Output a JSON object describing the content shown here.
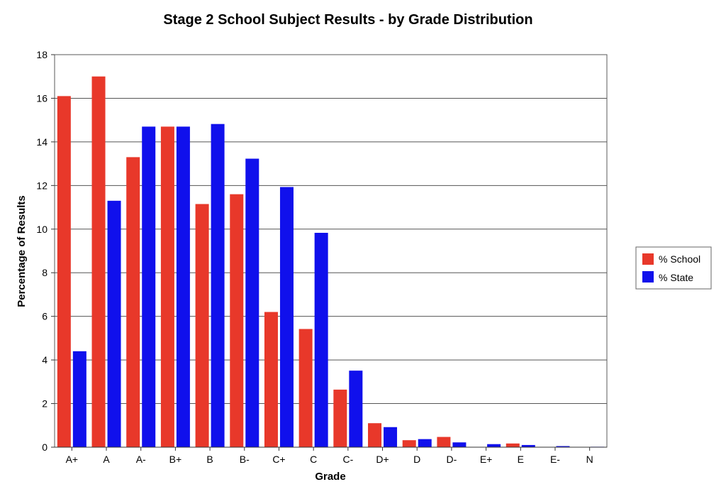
{
  "chart_data": {
    "type": "bar",
    "title": "Stage 2 School Subject Results - by Grade Distribution",
    "xlabel": "Grade",
    "ylabel": "Percentage of Results",
    "ylim": [
      0,
      18
    ],
    "yticks": [
      0,
      2,
      4,
      6,
      8,
      10,
      12,
      14,
      16,
      18
    ],
    "grid": true,
    "legend_position": "right",
    "categories": [
      "A+",
      "A",
      "A-",
      "B+",
      "B",
      "B-",
      "C+",
      "C",
      "C-",
      "D+",
      "D",
      "D-",
      "E+",
      "E",
      "E-",
      "N"
    ],
    "series": [
      {
        "name": "% School",
        "color": "#e8382a",
        "values": [
          16.1,
          17.0,
          13.3,
          14.7,
          11.15,
          11.6,
          6.2,
          5.42,
          2.64,
          1.1,
          0.32,
          0.47,
          0.0,
          0.17,
          0.0,
          0.0
        ]
      },
      {
        "name": "% State",
        "color": "#1010ec",
        "values": [
          4.4,
          11.3,
          14.7,
          14.7,
          14.82,
          13.23,
          11.93,
          9.83,
          3.51,
          0.92,
          0.37,
          0.22,
          0.14,
          0.1,
          0.05,
          0.02
        ]
      }
    ]
  }
}
